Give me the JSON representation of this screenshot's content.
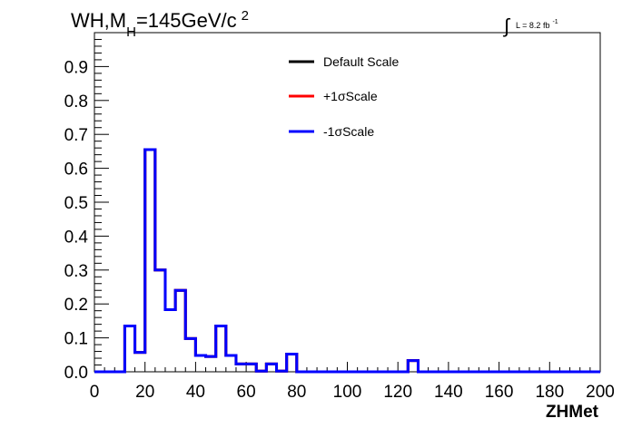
{
  "chart_data": {
    "type": "line",
    "title": "WH,M_H=145GeV/c^2",
    "title_parts": {
      "main": "WH,M",
      "sub": "H",
      "after": "=145GeV/c",
      "sup": "2"
    },
    "lumi_label": {
      "prefix": "L = 8.2 fb",
      "sup": "-1"
    },
    "xlabel": "ZHMet",
    "ylabel": "",
    "xlim": [
      0,
      200
    ],
    "ylim": [
      0,
      1.0
    ],
    "x_ticks": [
      0,
      20,
      40,
      60,
      80,
      100,
      120,
      140,
      160,
      180,
      200
    ],
    "y_ticks": [
      "0.0",
      "0.1",
      "0.2",
      "0.3",
      "0.4",
      "0.5",
      "0.6",
      "0.7",
      "0.8",
      "0.9"
    ],
    "bin_width": 4,
    "bin_edges_start": 0,
    "legend_position": "top-center",
    "series": [
      {
        "name": "Default Scale",
        "color": "#000000",
        "values": [
          0,
          0,
          0,
          0.135,
          0.057,
          0.655,
          0.3,
          0.183,
          0.24,
          0.098,
          0.048,
          0.045,
          0.135,
          0.048,
          0.023,
          0.023,
          0.002,
          0.023,
          0.002,
          0.052,
          0,
          0,
          0,
          0,
          0,
          0,
          0,
          0,
          0,
          0,
          0,
          0.033,
          0,
          0,
          0,
          0,
          0,
          0,
          0,
          0,
          0,
          0,
          0,
          0,
          0,
          0,
          0,
          0,
          0,
          0
        ]
      },
      {
        "name": "+1σScale",
        "color": "#ff0000",
        "values": [
          0,
          0,
          0,
          0.135,
          0.057,
          0.655,
          0.3,
          0.183,
          0.24,
          0.098,
          0.048,
          0.045,
          0.135,
          0.048,
          0.023,
          0.023,
          0.002,
          0.023,
          0.002,
          0.052,
          0,
          0,
          0,
          0,
          0,
          0,
          0,
          0,
          0,
          0,
          0,
          0.033,
          0,
          0,
          0,
          0,
          0,
          0,
          0,
          0,
          0,
          0,
          0,
          0,
          0,
          0,
          0,
          0,
          0,
          0
        ]
      },
      {
        "name": "-1σScale",
        "color": "#0000ff",
        "values": [
          0,
          0,
          0,
          0.135,
          0.057,
          0.655,
          0.3,
          0.183,
          0.24,
          0.098,
          0.048,
          0.045,
          0.135,
          0.048,
          0.023,
          0.023,
          0.002,
          0.023,
          0.002,
          0.052,
          0,
          0,
          0,
          0,
          0,
          0,
          0,
          0,
          0,
          0,
          0,
          0.033,
          0,
          0,
          0,
          0,
          0,
          0,
          0,
          0,
          0,
          0,
          0,
          0,
          0,
          0,
          0,
          0,
          0,
          0
        ]
      }
    ]
  }
}
